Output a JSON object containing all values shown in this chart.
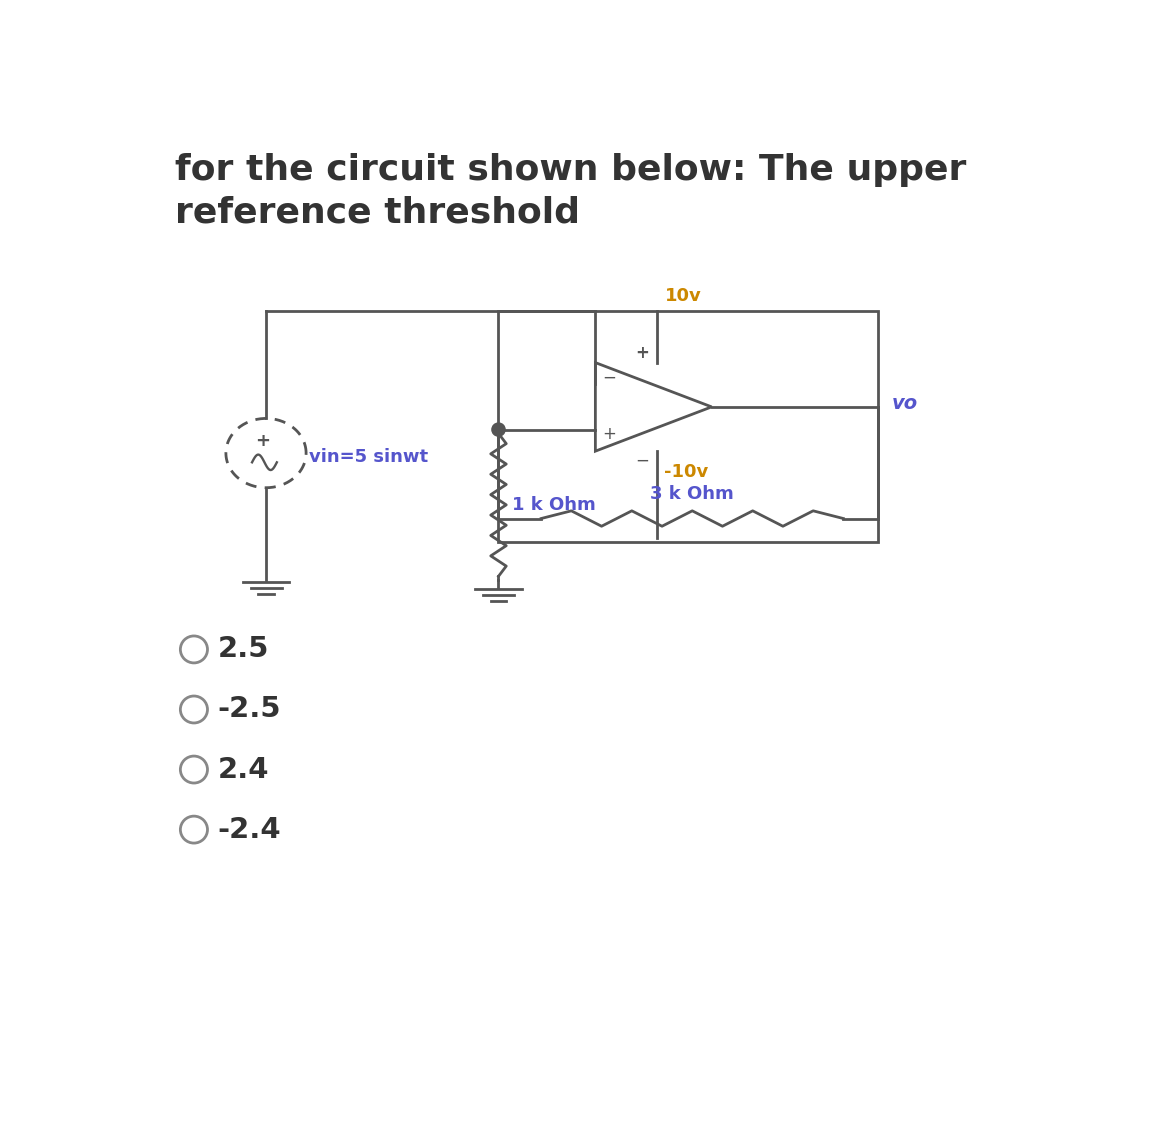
{
  "title_line1": "for the circuit shown below: The upper",
  "title_line2": "reference threshold",
  "title_color": "#333333",
  "title_fontsize": 26,
  "title_fontweight": "bold",
  "circuit_color": "#555555",
  "label_color": "#5555cc",
  "orange_color": "#cc8800",
  "vin_label": "vin=5 sinwt",
  "v10_label": "10v",
  "vm10_label": "-10v",
  "r3k_label": "3 k Ohm",
  "r1k_label": "1 k Ohm",
  "vo_label": "vo",
  "options": [
    "2.5",
    "-2.5",
    "2.4",
    "-2.4"
  ],
  "bg_color": "#ffffff",
  "circuit_lw": 2.0
}
